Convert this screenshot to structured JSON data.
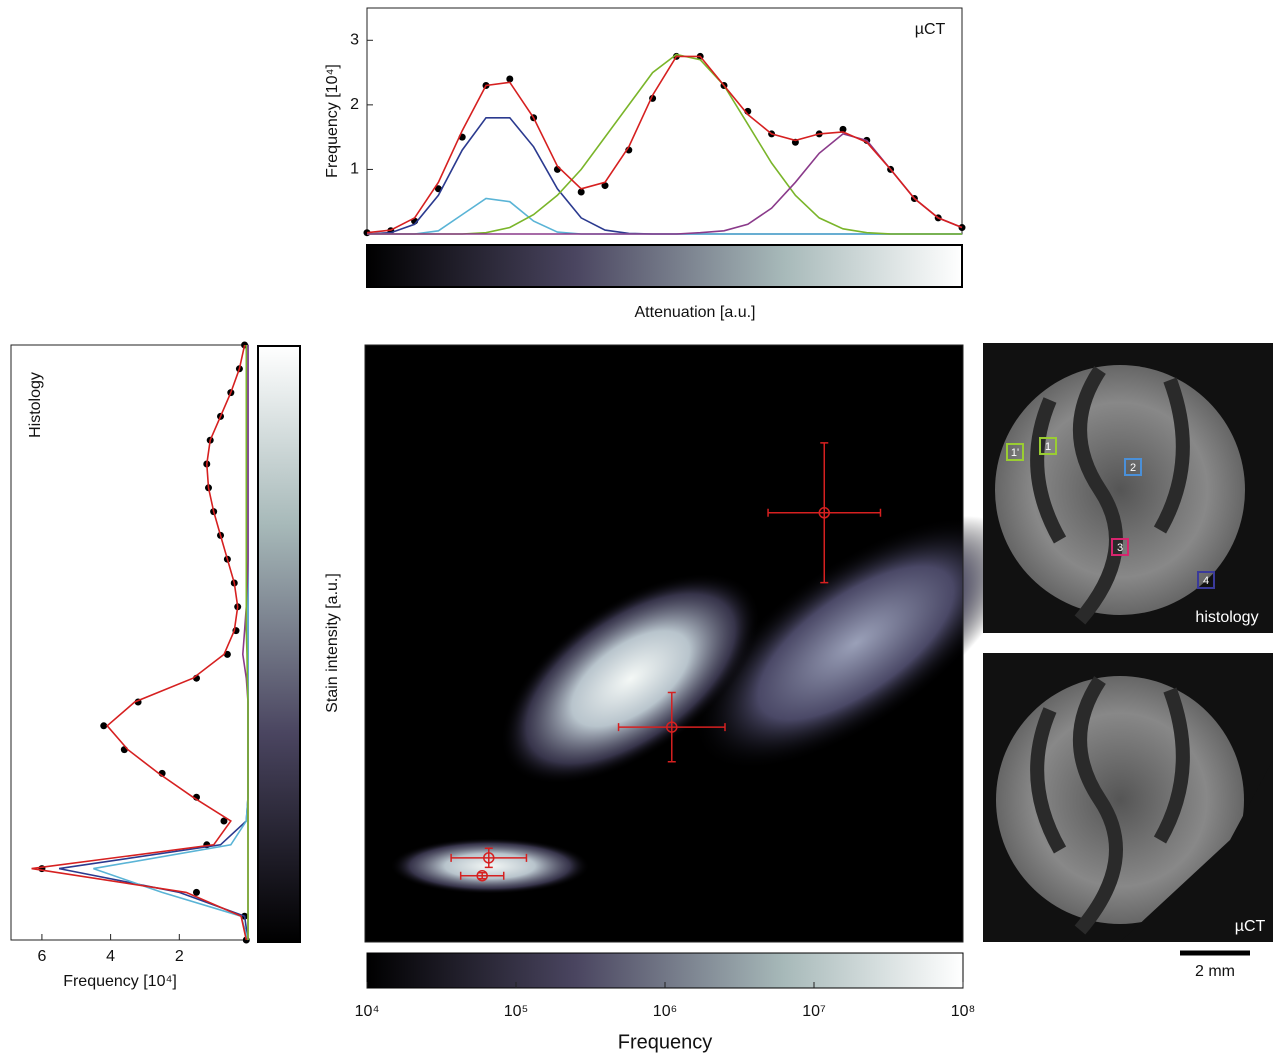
{
  "chart_data": [
    {
      "type": "line",
      "annotation": "µCT",
      "xlabel": "Attenuation [a.u.]",
      "ylabel": "Frequency [10⁴]",
      "xlim": [
        0,
        100
      ],
      "ylim": [
        0,
        3.5
      ],
      "yticks": [
        1,
        2,
        3
      ],
      "x": [
        0,
        4,
        8,
        12,
        16,
        20,
        24,
        28,
        32,
        36,
        40,
        44,
        48,
        52,
        56,
        60,
        64,
        68,
        72,
        76,
        80,
        84,
        88,
        92,
        96,
        100
      ],
      "series": [
        {
          "style": "markers",
          "color": "#000000",
          "values": [
            0.02,
            0.05,
            0.2,
            0.7,
            1.5,
            2.3,
            2.4,
            1.8,
            1.0,
            0.65,
            0.75,
            1.3,
            2.1,
            2.75,
            2.75,
            2.3,
            1.9,
            1.55,
            1.42,
            1.55,
            1.62,
            1.45,
            1.0,
            0.55,
            0.25,
            0.1
          ]
        },
        {
          "style": "line",
          "color": "#2b3a8f",
          "values": [
            0,
            0.02,
            0.15,
            0.6,
            1.3,
            1.8,
            1.8,
            1.35,
            0.7,
            0.25,
            0.06,
            0.01,
            0,
            0,
            0,
            0,
            0,
            0,
            0,
            0,
            0,
            0,
            0,
            0,
            0,
            0
          ]
        },
        {
          "style": "line",
          "color": "#5ab4d6",
          "values": [
            0,
            0,
            0,
            0.05,
            0.3,
            0.55,
            0.5,
            0.2,
            0.03,
            0,
            0,
            0,
            0,
            0,
            0,
            0,
            0,
            0,
            0,
            0,
            0,
            0,
            0,
            0,
            0,
            0
          ]
        },
        {
          "style": "line",
          "color": "#7ab52a",
          "values": [
            0,
            0,
            0,
            0,
            0,
            0.02,
            0.1,
            0.3,
            0.6,
            1.0,
            1.5,
            2.0,
            2.5,
            2.78,
            2.7,
            2.3,
            1.7,
            1.1,
            0.6,
            0.25,
            0.08,
            0.02,
            0,
            0,
            0,
            0
          ]
        },
        {
          "style": "line",
          "color": "#8a3a8a",
          "values": [
            0,
            0,
            0,
            0,
            0,
            0,
            0,
            0,
            0,
            0,
            0,
            0,
            0,
            0,
            0.02,
            0.05,
            0.15,
            0.4,
            0.8,
            1.25,
            1.55,
            1.45,
            1.0,
            0.55,
            0.25,
            0.1
          ]
        },
        {
          "style": "line",
          "color": "#d62020",
          "values": [
            0.02,
            0.06,
            0.25,
            0.8,
            1.6,
            2.3,
            2.35,
            1.8,
            1.05,
            0.7,
            0.8,
            1.35,
            2.15,
            2.75,
            2.75,
            2.3,
            1.85,
            1.55,
            1.45,
            1.55,
            1.58,
            1.42,
            1.0,
            0.55,
            0.25,
            0.1
          ]
        }
      ]
    },
    {
      "type": "line",
      "orientation": "horizontal",
      "annotation": "Histology",
      "xlabel": "Frequency [10⁴]",
      "xlim": [
        6.9,
        0
      ],
      "ylim": [
        0,
        100
      ],
      "xticks": [
        6,
        4,
        2
      ],
      "y": [
        0,
        4,
        8,
        12,
        16,
        20,
        24,
        28,
        32,
        36,
        40,
        44,
        48,
        52,
        56,
        60,
        64,
        68,
        72,
        76,
        80,
        84,
        88,
        92,
        96,
        100
      ],
      "series": [
        {
          "style": "markers",
          "color": "#000000",
          "values": [
            0.05,
            0.1,
            1.5,
            6.0,
            1.2,
            0.7,
            1.5,
            2.5,
            3.6,
            4.2,
            3.2,
            1.5,
            0.6,
            0.35,
            0.3,
            0.4,
            0.6,
            0.8,
            1.0,
            1.15,
            1.2,
            1.1,
            0.8,
            0.5,
            0.25,
            0.1
          ]
        },
        {
          "style": "line",
          "color": "#2b3a8f",
          "values": [
            0,
            0.1,
            2.0,
            5.5,
            0.8,
            0.05,
            0,
            0,
            0,
            0,
            0,
            0,
            0,
            0,
            0,
            0,
            0,
            0,
            0,
            0,
            0,
            0,
            0,
            0,
            0,
            0
          ]
        },
        {
          "style": "line",
          "color": "#5ab4d6",
          "values": [
            0,
            0.2,
            2.5,
            4.5,
            0.5,
            0.05,
            0,
            0,
            0,
            0,
            0,
            0,
            0,
            0,
            0,
            0,
            0,
            0,
            0,
            0,
            0,
            0,
            0,
            0,
            0,
            0
          ]
        },
        {
          "style": "line",
          "color": "#8a3a8a",
          "values": [
            0,
            0,
            0,
            0,
            0,
            0,
            0,
            0,
            0,
            0,
            0,
            0.05,
            0.15,
            0.1,
            0.05,
            0.02,
            0,
            0,
            0,
            0,
            0,
            0,
            0,
            0,
            0,
            0
          ]
        },
        {
          "style": "line",
          "color": "#7ab52a",
          "values": [
            0,
            0,
            0,
            0,
            0,
            0,
            0,
            0,
            0,
            0,
            0,
            0.02,
            0.03,
            0.05,
            0.05,
            0.05,
            0.05,
            0.05,
            0.05,
            0.05,
            0.05,
            0.05,
            0.05,
            0.05,
            0.05,
            0.05
          ]
        },
        {
          "style": "line",
          "color": "#d62020",
          "values": [
            0.05,
            0.2,
            1.8,
            6.3,
            1.0,
            0.5,
            1.6,
            2.6,
            3.5,
            4.1,
            3.3,
            1.6,
            0.7,
            0.4,
            0.3,
            0.4,
            0.6,
            0.8,
            1.0,
            1.15,
            1.2,
            1.1,
            0.8,
            0.5,
            0.25,
            0.1
          ]
        }
      ]
    },
    {
      "type": "scatter",
      "ylabel": "Stain intensity [a.u.]",
      "xlim": [
        0,
        100
      ],
      "ylim": [
        0,
        100
      ],
      "color": "#d62020",
      "x": [
        76.8,
        51.3,
        20.7,
        19.6
      ],
      "values": [
        71.9,
        36.0,
        14.1,
        11.1
      ],
      "xerr": [
        9.4,
        8.9,
        6.3,
        3.6
      ],
      "yerr": [
        11.7,
        5.8,
        1.6,
        0.5
      ],
      "colorbar": {
        "label": "Frequency",
        "log": true,
        "lim": [
          10000,
          100000000
        ],
        "ticks": [
          {
            "value": 10000,
            "label": "10⁴"
          },
          {
            "value": 100000,
            "label": "10⁵"
          },
          {
            "value": 1000000,
            "label": "10⁶"
          },
          {
            "value": 10000000,
            "label": "10⁷"
          },
          {
            "value": 100000000,
            "label": "10⁸"
          }
        ]
      }
    }
  ],
  "images": {
    "panels": [
      {
        "label": "histology",
        "rois": [
          {
            "label": "1'",
            "color": "#9acd32"
          },
          {
            "label": "1",
            "color": "#9acd32"
          },
          {
            "label": "2",
            "color": "#4a90d9"
          },
          {
            "label": "3",
            "color": "#d6266e"
          },
          {
            "label": "4",
            "color": "#3a3a9a"
          }
        ]
      },
      {
        "label": "µCT"
      }
    ],
    "scale_bar": "2 mm"
  }
}
